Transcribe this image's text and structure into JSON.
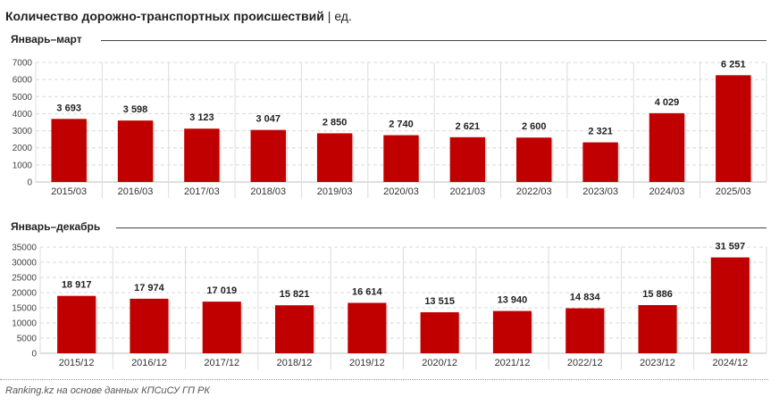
{
  "title": {
    "main": "Количество дорожно-транспортных происшествий",
    "separator": "|",
    "unit": "ед."
  },
  "source": "Ranking.kz на основе данных КПСиСУ ГП РК",
  "colors": {
    "bar": "#c00000",
    "grid": "#d9d9d9",
    "text": "#222222"
  },
  "chart_data": [
    {
      "type": "bar",
      "title": "Январь–март",
      "categories": [
        "2015/03",
        "2016/03",
        "2017/03",
        "2018/03",
        "2019/03",
        "2020/03",
        "2021/03",
        "2022/03",
        "2023/03",
        "2024/03",
        "2025/03"
      ],
      "values": [
        3693,
        3598,
        3123,
        3047,
        2850,
        2740,
        2621,
        2600,
        2321,
        4029,
        6251
      ],
      "value_labels": [
        "3 693",
        "3 598",
        "3 123",
        "3 047",
        "2 850",
        "2 740",
        "2 621",
        "2 600",
        "2 321",
        "4 029",
        "6 251"
      ],
      "ylim": [
        0,
        7000
      ],
      "yticks": [
        0,
        1000,
        2000,
        3000,
        4000,
        5000,
        6000,
        7000
      ],
      "ytick_labels": [
        "0",
        "1000",
        "2000",
        "3000",
        "4000",
        "5000",
        "6000",
        "7000"
      ],
      "grid": true
    },
    {
      "type": "bar",
      "title": "Январь–декабрь",
      "categories": [
        "2015/12",
        "2016/12",
        "2017/12",
        "2018/12",
        "2019/12",
        "2020/12",
        "2021/12",
        "2022/12",
        "2023/12",
        "2024/12"
      ],
      "values": [
        18917,
        17974,
        17019,
        15821,
        16614,
        13515,
        13940,
        14834,
        15886,
        31597
      ],
      "value_labels": [
        "18 917",
        "17 974",
        "17 019",
        "15 821",
        "16 614",
        "13 515",
        "13 940",
        "14 834",
        "15 886",
        "31 597"
      ],
      "ylim": [
        0,
        35000
      ],
      "yticks": [
        0,
        5000,
        10000,
        15000,
        20000,
        25000,
        30000,
        35000
      ],
      "ytick_labels": [
        "0",
        "5000",
        "10000",
        "15000",
        "20000",
        "25000",
        "30000",
        "35000"
      ],
      "grid": true
    }
  ]
}
